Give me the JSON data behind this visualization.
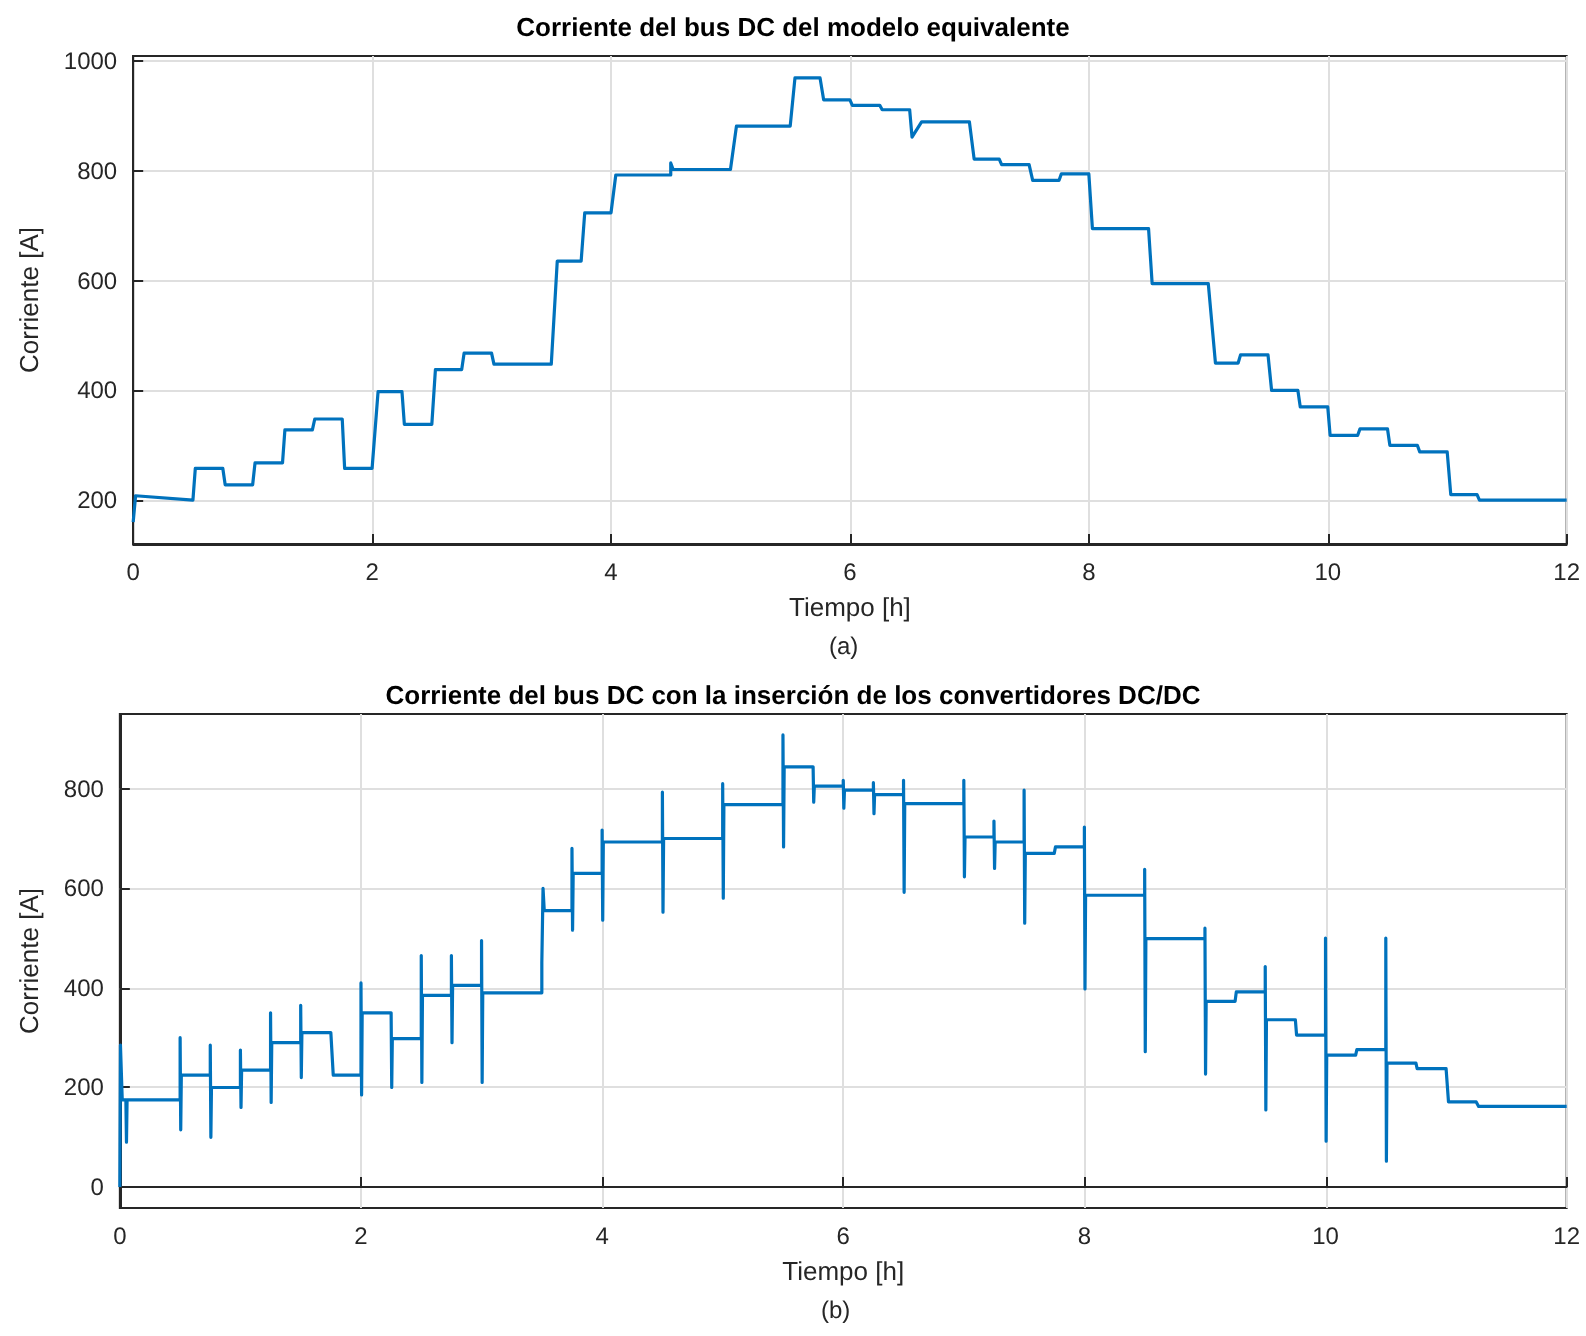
{
  "chart_data": [
    {
      "type": "line",
      "title": "Corriente del bus DC del modelo equivalente",
      "xlabel": "Tiempo [h]",
      "ylabel": "Corriente [A]",
      "annotations": [
        "(a)"
      ],
      "color": "#0072bd",
      "marker": "none",
      "grid": true,
      "xlim": [
        0,
        12
      ],
      "xticks": [
        0,
        2,
        4,
        6,
        8,
        10,
        12
      ],
      "ylim": [
        120,
        1010
      ],
      "yticks": [
        200,
        400,
        600,
        800,
        1000
      ],
      "x": [
        0,
        0.02,
        0.5,
        0.52,
        0.75,
        0.77,
        1.0,
        1.02,
        1.25,
        1.27,
        1.5,
        1.52,
        1.75,
        1.77,
        2.0,
        2.05,
        2.25,
        2.27,
        2.5,
        2.53,
        2.75,
        2.77,
        3.0,
        3.02,
        3.5,
        3.55,
        3.75,
        3.78,
        4.0,
        4.04,
        4.5,
        4.5,
        4.52,
        5.0,
        5.05,
        5.5,
        5.54,
        5.75,
        5.78,
        6.0,
        6.02,
        6.25,
        6.27,
        6.5,
        6.52,
        6.6,
        7.0,
        7.04,
        7.25,
        7.27,
        7.5,
        7.53,
        7.75,
        7.77,
        8.0,
        8.03,
        8.5,
        8.53,
        9.0,
        9.06,
        9.25,
        9.27,
        9.5,
        9.53,
        9.75,
        9.77,
        10.0,
        10.02,
        10.25,
        10.27,
        10.5,
        10.52,
        10.75,
        10.77,
        11.0,
        11.03,
        11.25,
        11.27,
        12
      ],
      "values": [
        160,
        208,
        200,
        258,
        258,
        228,
        228,
        268,
        268,
        328,
        328,
        348,
        348,
        258,
        258,
        398,
        398,
        338,
        338,
        438,
        438,
        468,
        468,
        448,
        448,
        636,
        636,
        724,
        724,
        793,
        793,
        815,
        803,
        803,
        882,
        882,
        970,
        970,
        930,
        930,
        920,
        920,
        912,
        912,
        862,
        890,
        890,
        822,
        822,
        812,
        812,
        783,
        783,
        795,
        795,
        695,
        695,
        595,
        595,
        450,
        450,
        465,
        465,
        400,
        400,
        370,
        370,
        318,
        318,
        330,
        330,
        300,
        300,
        288,
        288,
        210,
        210,
        200,
        200
      ]
    },
    {
      "type": "line",
      "title": "Corriente del bus DC con la inserción de los convertidores DC/DC",
      "xlabel": "Tiempo [h]",
      "ylabel": "Corriente [A]",
      "annotations": [
        "(b)"
      ],
      "color": "#0072bd",
      "marker": "none",
      "grid": true,
      "xlim": [
        0,
        12
      ],
      "xticks": [
        0,
        2,
        4,
        6,
        8,
        10,
        12
      ],
      "ylim": [
        -42,
        950
      ],
      "yticks": [
        0,
        200,
        400,
        600,
        800
      ],
      "x": [
        0,
        0.005,
        0.02,
        0.05,
        0.055,
        0.06,
        0.5,
        0.5,
        0.505,
        0.51,
        0.75,
        0.75,
        0.755,
        0.76,
        1.0,
        1.0,
        1.005,
        1.01,
        1.25,
        1.25,
        1.255,
        1.26,
        1.5,
        1.5,
        1.505,
        1.51,
        1.75,
        1.77,
        2.0,
        2.0,
        2.005,
        2.01,
        2.25,
        2.255,
        2.26,
        2.5,
        2.5,
        2.505,
        2.51,
        2.75,
        2.75,
        2.755,
        2.76,
        3.0,
        3.0,
        3.005,
        3.01,
        3.5,
        3.5,
        3.51,
        3.52,
        3.75,
        3.75,
        3.755,
        3.76,
        4.0,
        4.0,
        4.005,
        4.01,
        4.5,
        4.5,
        4.505,
        4.51,
        5.0,
        5.0,
        5.005,
        5.01,
        5.5,
        5.5,
        5.505,
        5.51,
        5.75,
        5.755,
        5.76,
        6.0,
        6.0,
        6.005,
        6.01,
        6.25,
        6.25,
        6.255,
        6.26,
        6.5,
        6.5,
        6.505,
        6.51,
        7.0,
        7.0,
        7.005,
        7.01,
        7.25,
        7.25,
        7.255,
        7.26,
        7.5,
        7.5,
        7.505,
        7.51,
        7.75,
        7.76,
        8.0,
        8.0,
        8.005,
        8.01,
        8.5,
        8.5,
        8.505,
        8.51,
        9.0,
        9.0,
        9.005,
        9.01,
        9.25,
        9.26,
        9.5,
        9.5,
        9.505,
        9.51,
        9.75,
        9.76,
        10.0,
        10.0,
        10.005,
        10.01,
        10.25,
        10.26,
        10.5,
        10.5,
        10.505,
        10.51,
        10.75,
        10.76,
        11.0,
        11.02,
        11.25,
        11.27,
        12
      ],
      "values": [
        0,
        285,
        175,
        175,
        90,
        175,
        175,
        300,
        115,
        225,
        225,
        285,
        100,
        200,
        200,
        275,
        160,
        235,
        235,
        350,
        170,
        290,
        290,
        365,
        220,
        310,
        310,
        225,
        225,
        410,
        185,
        350,
        350,
        200,
        298,
        298,
        465,
        210,
        385,
        385,
        465,
        290,
        405,
        405,
        495,
        210,
        390,
        390,
        450,
        600,
        555,
        555,
        680,
        516,
        630,
        630,
        717,
        536,
        693,
        693,
        793,
        552,
        700,
        700,
        810,
        580,
        768,
        768,
        908,
        683,
        844,
        844,
        773,
        805,
        805,
        817,
        761,
        797,
        797,
        812,
        750,
        788,
        788,
        817,
        592,
        770,
        770,
        817,
        623,
        703,
        703,
        735,
        640,
        693,
        693,
        797,
        530,
        670,
        670,
        683,
        683,
        723,
        398,
        586,
        586,
        638,
        272,
        499,
        499,
        520,
        227,
        373,
        373,
        392,
        392,
        443,
        155,
        336,
        336,
        305,
        305,
        500,
        92,
        265,
        265,
        276,
        276,
        500,
        52,
        249,
        249,
        238,
        238,
        171,
        171,
        162,
        162
      ]
    }
  ]
}
